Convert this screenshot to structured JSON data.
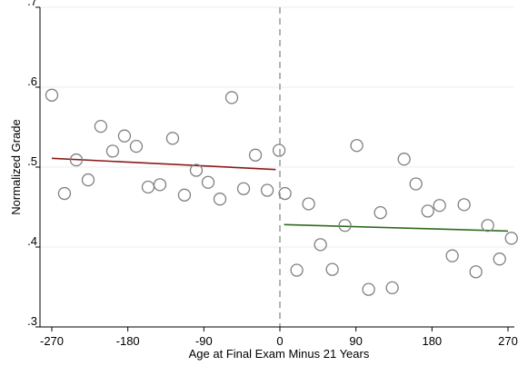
{
  "chart_data": {
    "type": "scatter",
    "title": "",
    "xlabel": "Age at Final Exam Minus 21 Years",
    "ylabel": "Normalized Grade",
    "xlim": [
      -275,
      275
    ],
    "ylim": [
      0.3,
      0.7
    ],
    "x_ticks": [
      -270,
      -180,
      -90,
      0,
      90,
      180,
      270
    ],
    "x_tick_labels": [
      "-270",
      "-180",
      "-90",
      "0",
      "90",
      "180",
      "270"
    ],
    "y_ticks": [
      0.3,
      0.4,
      0.5,
      0.6,
      0.7
    ],
    "y_tick_labels": [
      ".3",
      ".4",
      ".5",
      ".6",
      ".7"
    ],
    "grid": "horizontal",
    "cutoff_line": {
      "x": 0,
      "style": "dashed",
      "color": "#a0a0a0"
    },
    "series": [
      {
        "points": [
          [
            -270,
            0.59
          ],
          [
            -255,
            0.467
          ],
          [
            -241,
            0.509
          ],
          [
            -227,
            0.484
          ],
          [
            -212,
            0.551
          ],
          [
            -198,
            0.52
          ],
          [
            -184,
            0.539
          ],
          [
            -170,
            0.526
          ],
          [
            -156,
            0.475
          ],
          [
            -142,
            0.478
          ],
          [
            -127,
            0.536
          ],
          [
            -113,
            0.465
          ],
          [
            -99,
            0.496
          ],
          [
            -85,
            0.481
          ],
          [
            -71,
            0.46
          ],
          [
            -57,
            0.587
          ],
          [
            -43,
            0.473
          ],
          [
            -29,
            0.515
          ],
          [
            -15,
            0.471
          ],
          [
            -1,
            0.521
          ]
        ],
        "marker": "hollow-circle",
        "color": "#808080"
      },
      {
        "points": [
          [
            6,
            0.467
          ],
          [
            20,
            0.371
          ],
          [
            34,
            0.454
          ],
          [
            48,
            0.403
          ],
          [
            62,
            0.372
          ],
          [
            77,
            0.427
          ],
          [
            91,
            0.527
          ],
          [
            105,
            0.347
          ],
          [
            119,
            0.443
          ],
          [
            133,
            0.349
          ],
          [
            147,
            0.51
          ],
          [
            161,
            0.479
          ],
          [
            175,
            0.445
          ],
          [
            189,
            0.452
          ],
          [
            204,
            0.389
          ],
          [
            218,
            0.453
          ],
          [
            232,
            0.369
          ],
          [
            246,
            0.427
          ],
          [
            260,
            0.385
          ],
          [
            274,
            0.411
          ]
        ],
        "marker": "hollow-circle",
        "color": "#808080"
      }
    ],
    "fit_lines": [
      {
        "from": [
          -270,
          0.511
        ],
        "to": [
          -5,
          0.497
        ],
        "color": "#8b1a1a"
      },
      {
        "from": [
          5,
          0.428
        ],
        "to": [
          270,
          0.42
        ],
        "color": "#2e6b1e"
      }
    ]
  }
}
